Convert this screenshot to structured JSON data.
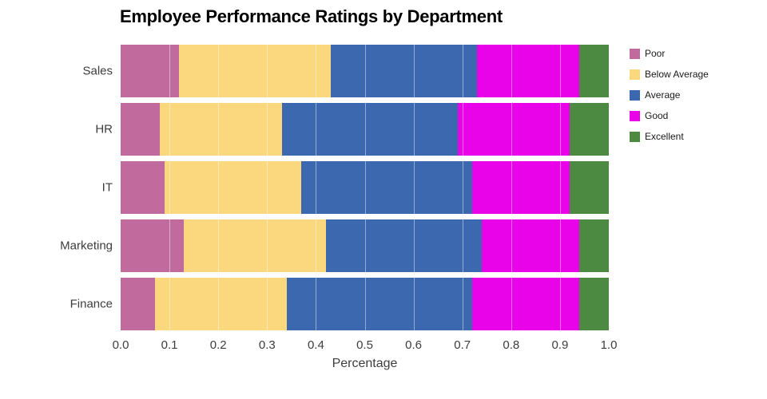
{
  "title": "Employee Performance Ratings by Department",
  "chart_data": {
    "type": "bar",
    "orientation": "horizontal",
    "stacked": true,
    "title": "Employee Performance Ratings by Department",
    "xlabel": "Percentage",
    "ylabel": "",
    "xlim": [
      0,
      1
    ],
    "x_ticks": [
      "0.0",
      "0.1",
      "0.2",
      "0.3",
      "0.4",
      "0.5",
      "0.6",
      "0.7",
      "0.8",
      "0.9",
      "1.0"
    ],
    "grid": true,
    "legend_position": "right",
    "categories": [
      "Sales",
      "HR",
      "IT",
      "Marketing",
      "Finance"
    ],
    "series": [
      {
        "name": "Poor",
        "color": "#c06a9d",
        "values": [
          0.12,
          0.08,
          0.09,
          0.13,
          0.07
        ]
      },
      {
        "name": "Below Average",
        "color": "#fbd77e",
        "values": [
          0.31,
          0.25,
          0.28,
          0.29,
          0.27
        ]
      },
      {
        "name": "Average",
        "color": "#3b68ae",
        "values": [
          0.3,
          0.36,
          0.35,
          0.32,
          0.38
        ]
      },
      {
        "name": "Good",
        "color": "#e903e9",
        "values": [
          0.21,
          0.23,
          0.2,
          0.2,
          0.22
        ]
      },
      {
        "name": "Excellent",
        "color": "#4c8a42",
        "values": [
          0.06,
          0.08,
          0.08,
          0.06,
          0.06
        ]
      }
    ]
  }
}
